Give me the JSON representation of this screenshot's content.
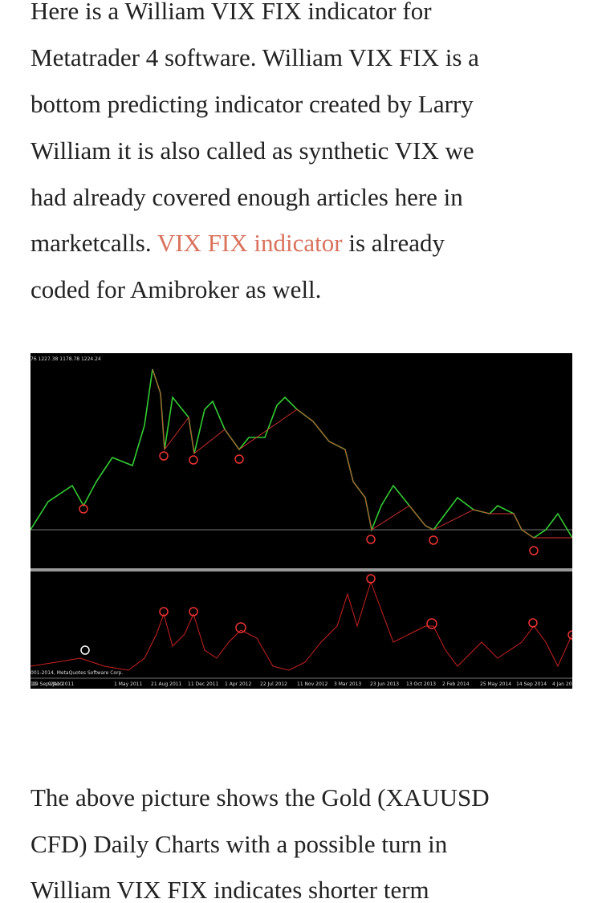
{
  "article": {
    "paragraph_1": {
      "lines": [
        "Here is a William VIX FIX indicator for",
        "Metatrader 4 software. William VIX FIX is a",
        "bottom predicting indicator created by Larry",
        "William it is also called as synthetic VIX we",
        "had already covered enough articles here in"
      ],
      "link_line": {
        "before": "marketcalls.",
        "link": "VIX FIX indicator",
        "after": "is already"
      },
      "last_line": "coded for Amibroker as well."
    },
    "image": {
      "header": "76 1227.38 1178.78 1224.24",
      "copyright": "001-2014, MetaQuotes Software Corp.",
      "dates": [
        "10",
        "19 Sep 2010",
        "9 Jan 2011",
        "1 May 2011",
        "21 Aug 2011",
        "11 Dec 2011",
        "1 Apr 2012",
        "22 Jul 2012",
        "11 Nov 2012",
        "3 Mar 2013",
        "23 Jun 2013",
        "13 Oct 2013",
        "2 Feb 2014",
        "25 May 2014",
        "14 Sep 2014",
        "4 Jan 20"
      ]
    },
    "paragraph_2": {
      "lines": [
        "The above picture shows the Gold (XAUUSD",
        "CFD) Daily Charts with a possible turn in",
        "William VIX FIX indicates shorter term"
      ]
    }
  }
}
